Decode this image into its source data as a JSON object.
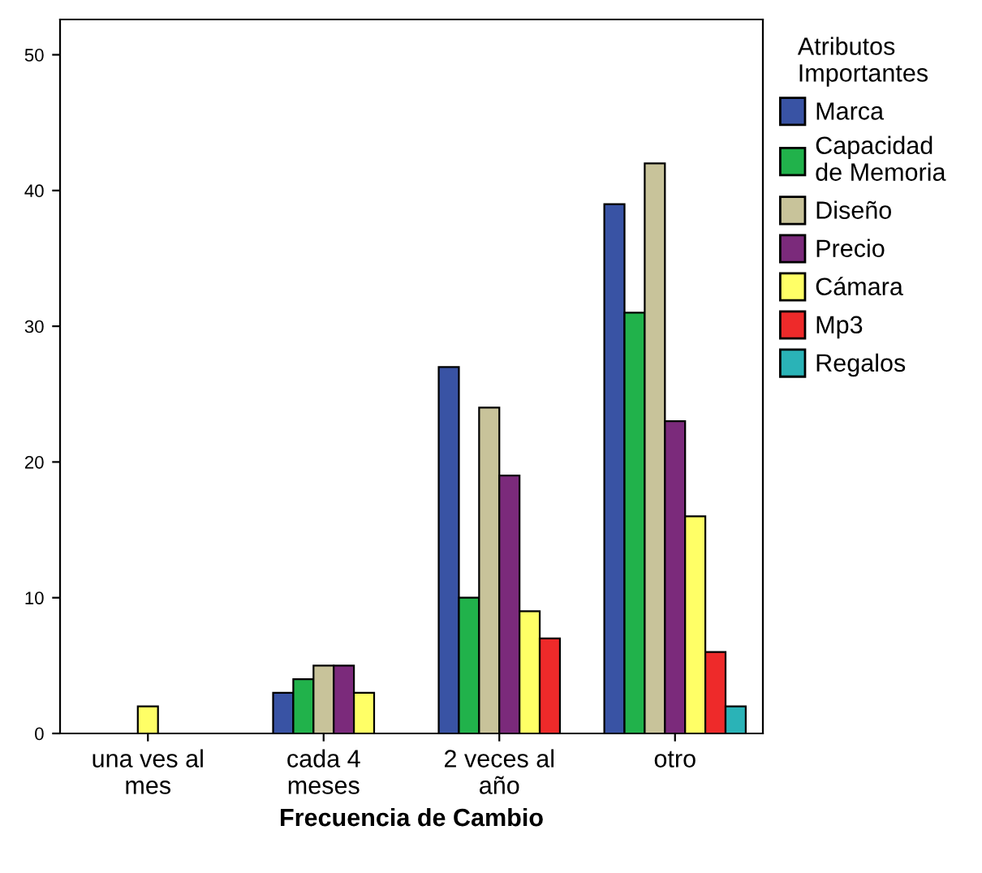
{
  "chart_data": {
    "type": "bar",
    "xlabel": "Frecuencia de Cambio",
    "legend_title": "Atributos\nImportantes",
    "legend": "right",
    "categories": [
      "una ves al\nmes",
      "cada 4\nmeses",
      "2 veces al\naño",
      "otro"
    ],
    "ylim": [
      0,
      52.6
    ],
    "yticks": [
      0,
      10,
      20,
      30,
      40,
      50
    ],
    "grid": false,
    "series": [
      {
        "name": "Marca",
        "color": "#3953a4",
        "values": [
          null,
          3,
          27,
          39
        ]
      },
      {
        "name": "Capacidad\nde Memoria",
        "color": "#21b24b",
        "values": [
          null,
          4,
          10,
          31
        ]
      },
      {
        "name": "Diseño",
        "color": "#c8c39a",
        "values": [
          null,
          5,
          24,
          42
        ]
      },
      {
        "name": "Precio",
        "color": "#7b2a7b",
        "values": [
          null,
          5,
          19,
          23
        ]
      },
      {
        "name": "Cámara",
        "color": "#ffff66",
        "values": [
          2,
          3,
          9,
          16
        ]
      },
      {
        "name": "Mp3",
        "color": "#ee2a2a",
        "values": [
          null,
          null,
          7,
          6
        ]
      },
      {
        "name": "Regalos",
        "color": "#2ab3b7",
        "values": [
          null,
          null,
          null,
          2
        ]
      }
    ]
  }
}
